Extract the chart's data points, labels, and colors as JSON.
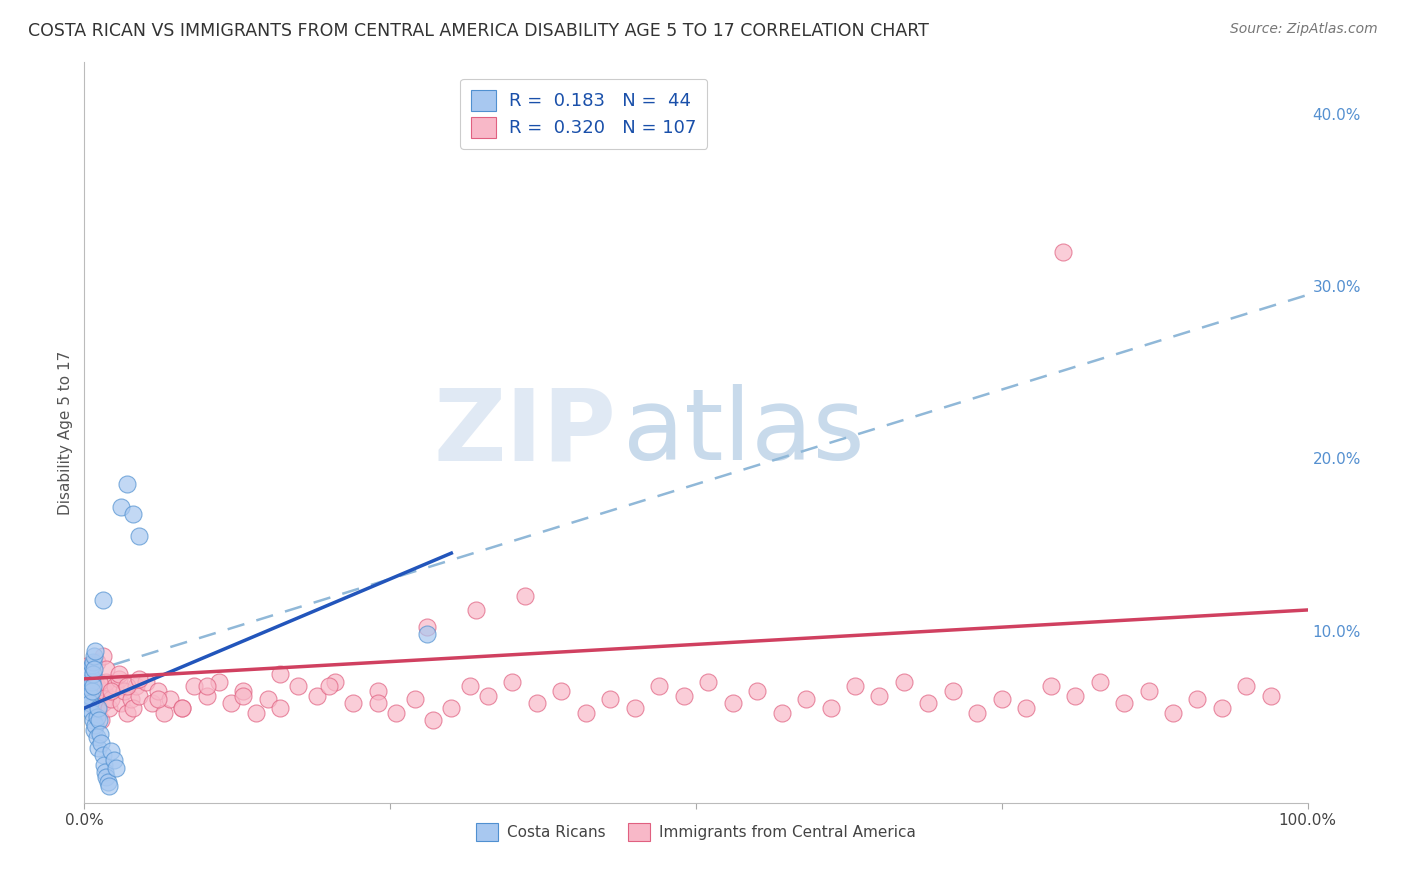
{
  "title": "COSTA RICAN VS IMMIGRANTS FROM CENTRAL AMERICA DISABILITY AGE 5 TO 17 CORRELATION CHART",
  "source": "Source: ZipAtlas.com",
  "ylabel": "Disability Age 5 to 17",
  "blue_R": 0.183,
  "blue_N": 44,
  "pink_R": 0.32,
  "pink_N": 107,
  "blue_fill_color": "#A8C8F0",
  "pink_fill_color": "#F8B8C8",
  "blue_edge_color": "#5090D0",
  "pink_edge_color": "#E06080",
  "blue_line_color": "#2255BB",
  "pink_line_color": "#D04060",
  "dashed_line_color": "#90B8D8",
  "legend_label_blue": "Costa Ricans",
  "legend_label_pink": "Immigrants from Central America",
  "xlim": [
    0.0,
    1.0
  ],
  "ylim": [
    0.0,
    0.43
  ],
  "yticks_right": [
    0.0,
    0.1,
    0.2,
    0.3,
    0.4
  ],
  "ytick_labels_right": [
    "",
    "10.0%",
    "20.0%",
    "30.0%",
    "40.0%"
  ],
  "bg_color": "#FFFFFF",
  "grid_color": "#CCCCCC",
  "blue_scatter_x": [
    0.002,
    0.003,
    0.003,
    0.004,
    0.004,
    0.005,
    0.005,
    0.005,
    0.005,
    0.006,
    0.006,
    0.006,
    0.006,
    0.007,
    0.007,
    0.007,
    0.007,
    0.008,
    0.008,
    0.008,
    0.009,
    0.009,
    0.01,
    0.01,
    0.011,
    0.011,
    0.012,
    0.013,
    0.014,
    0.015,
    0.016,
    0.017,
    0.018,
    0.019,
    0.02,
    0.022,
    0.024,
    0.026,
    0.03,
    0.035,
    0.04,
    0.045,
    0.28,
    0.015
  ],
  "blue_scatter_y": [
    0.065,
    0.06,
    0.055,
    0.072,
    0.068,
    0.078,
    0.075,
    0.062,
    0.058,
    0.08,
    0.07,
    0.065,
    0.052,
    0.082,
    0.075,
    0.068,
    0.048,
    0.085,
    0.078,
    0.042,
    0.088,
    0.045,
    0.05,
    0.038,
    0.055,
    0.032,
    0.048,
    0.04,
    0.035,
    0.028,
    0.022,
    0.018,
    0.015,
    0.012,
    0.01,
    0.03,
    0.025,
    0.02,
    0.172,
    0.185,
    0.168,
    0.155,
    0.098,
    0.118
  ],
  "pink_scatter_x": [
    0.004,
    0.005,
    0.005,
    0.006,
    0.006,
    0.007,
    0.007,
    0.008,
    0.008,
    0.009,
    0.009,
    0.01,
    0.01,
    0.011,
    0.012,
    0.013,
    0.014,
    0.015,
    0.016,
    0.018,
    0.02,
    0.022,
    0.025,
    0.028,
    0.03,
    0.032,
    0.035,
    0.038,
    0.04,
    0.042,
    0.045,
    0.05,
    0.055,
    0.06,
    0.065,
    0.07,
    0.08,
    0.09,
    0.1,
    0.11,
    0.12,
    0.13,
    0.14,
    0.15,
    0.16,
    0.175,
    0.19,
    0.205,
    0.22,
    0.24,
    0.255,
    0.27,
    0.285,
    0.3,
    0.315,
    0.33,
    0.35,
    0.37,
    0.39,
    0.41,
    0.43,
    0.45,
    0.47,
    0.49,
    0.51,
    0.53,
    0.55,
    0.57,
    0.59,
    0.61,
    0.63,
    0.65,
    0.67,
    0.69,
    0.71,
    0.73,
    0.75,
    0.77,
    0.79,
    0.81,
    0.83,
    0.85,
    0.87,
    0.89,
    0.91,
    0.93,
    0.95,
    0.97,
    0.01,
    0.012,
    0.015,
    0.018,
    0.022,
    0.028,
    0.035,
    0.045,
    0.06,
    0.08,
    0.1,
    0.13,
    0.16,
    0.2,
    0.24,
    0.28,
    0.32,
    0.36,
    0.8
  ],
  "pink_scatter_y": [
    0.08,
    0.075,
    0.065,
    0.072,
    0.068,
    0.06,
    0.058,
    0.065,
    0.062,
    0.07,
    0.055,
    0.068,
    0.052,
    0.06,
    0.055,
    0.062,
    0.048,
    0.058,
    0.065,
    0.07,
    0.055,
    0.06,
    0.068,
    0.072,
    0.058,
    0.065,
    0.052,
    0.06,
    0.055,
    0.068,
    0.062,
    0.07,
    0.058,
    0.065,
    0.052,
    0.06,
    0.055,
    0.068,
    0.062,
    0.07,
    0.058,
    0.065,
    0.052,
    0.06,
    0.055,
    0.068,
    0.062,
    0.07,
    0.058,
    0.065,
    0.052,
    0.06,
    0.048,
    0.055,
    0.068,
    0.062,
    0.07,
    0.058,
    0.065,
    0.052,
    0.06,
    0.055,
    0.068,
    0.062,
    0.07,
    0.058,
    0.065,
    0.052,
    0.06,
    0.055,
    0.068,
    0.062,
    0.07,
    0.058,
    0.065,
    0.052,
    0.06,
    0.055,
    0.068,
    0.062,
    0.07,
    0.058,
    0.065,
    0.052,
    0.06,
    0.055,
    0.068,
    0.062,
    0.082,
    0.07,
    0.085,
    0.078,
    0.065,
    0.075,
    0.068,
    0.072,
    0.06,
    0.055,
    0.068,
    0.062,
    0.075,
    0.068,
    0.058,
    0.102,
    0.112,
    0.12,
    0.32
  ],
  "blue_trend": [
    0.0,
    0.3,
    0.055,
    0.145
  ],
  "pink_trend": [
    0.0,
    1.0,
    0.072,
    0.112
  ],
  "dashed_trend": [
    0.0,
    1.0,
    0.075,
    0.295
  ]
}
